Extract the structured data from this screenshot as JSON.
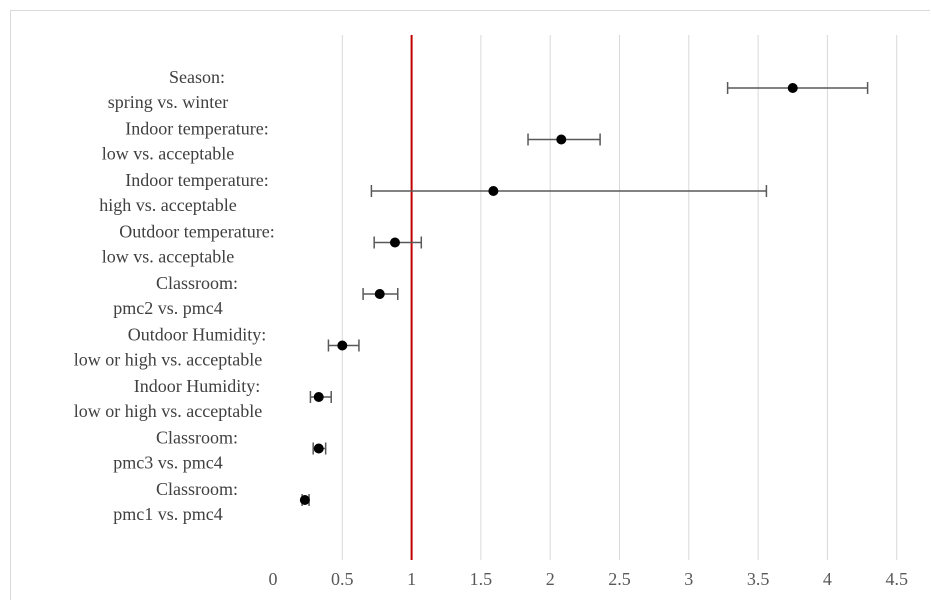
{
  "chart_data": {
    "type": "scatter",
    "subtype": "forest-plot",
    "title": "",
    "xlabel": "",
    "ylabel": "",
    "xlim": [
      0,
      4.5
    ],
    "xticks": [
      0,
      0.5,
      1,
      1.5,
      2,
      2.5,
      3,
      3.5,
      4,
      4.5
    ],
    "xtick_labels": [
      "0",
      "0.5",
      "1",
      "1.5",
      "2",
      "2.5",
      "3",
      "3.5",
      "4",
      "4.5"
    ],
    "reference_line": {
      "x": 1,
      "color": "#c00000"
    },
    "grid": "vertical",
    "point_color": "#000000",
    "errorbar_color": "#595959",
    "categories": [
      {
        "line1": "Season:",
        "line2": "spring vs. winter",
        "estimate": 3.75,
        "lower": 3.28,
        "upper": 4.29
      },
      {
        "line1": "Indoor temperature:",
        "line2": "low  vs. acceptable",
        "estimate": 2.08,
        "lower": 1.84,
        "upper": 2.36
      },
      {
        "line1": "Indoor temperature:",
        "line2": "high  vs. acceptable",
        "estimate": 1.59,
        "lower": 0.71,
        "upper": 3.56
      },
      {
        "line1": "Outdoor temperature:",
        "line2": "low vs. acceptable",
        "estimate": 0.88,
        "lower": 0.73,
        "upper": 1.07
      },
      {
        "line1": "Classroom:",
        "line2": "pmc2 vs. pmc4",
        "estimate": 0.77,
        "lower": 0.65,
        "upper": 0.9
      },
      {
        "line1": "Outdoor Humidity:",
        "line2": "low or high vs. acceptable",
        "estimate": 0.5,
        "lower": 0.4,
        "upper": 0.62
      },
      {
        "line1": "Indoor Humidity:",
        "line2": "low or high vs. acceptable",
        "estimate": 0.33,
        "lower": 0.27,
        "upper": 0.42
      },
      {
        "line1": "Classroom:",
        "line2": "pmc3 vs. pmc4",
        "estimate": 0.33,
        "lower": 0.29,
        "upper": 0.38
      },
      {
        "line1": "Classroom:",
        "line2": "pmc1 vs. pmc4",
        "estimate": 0.23,
        "lower": 0.21,
        "upper": 0.26
      }
    ]
  }
}
